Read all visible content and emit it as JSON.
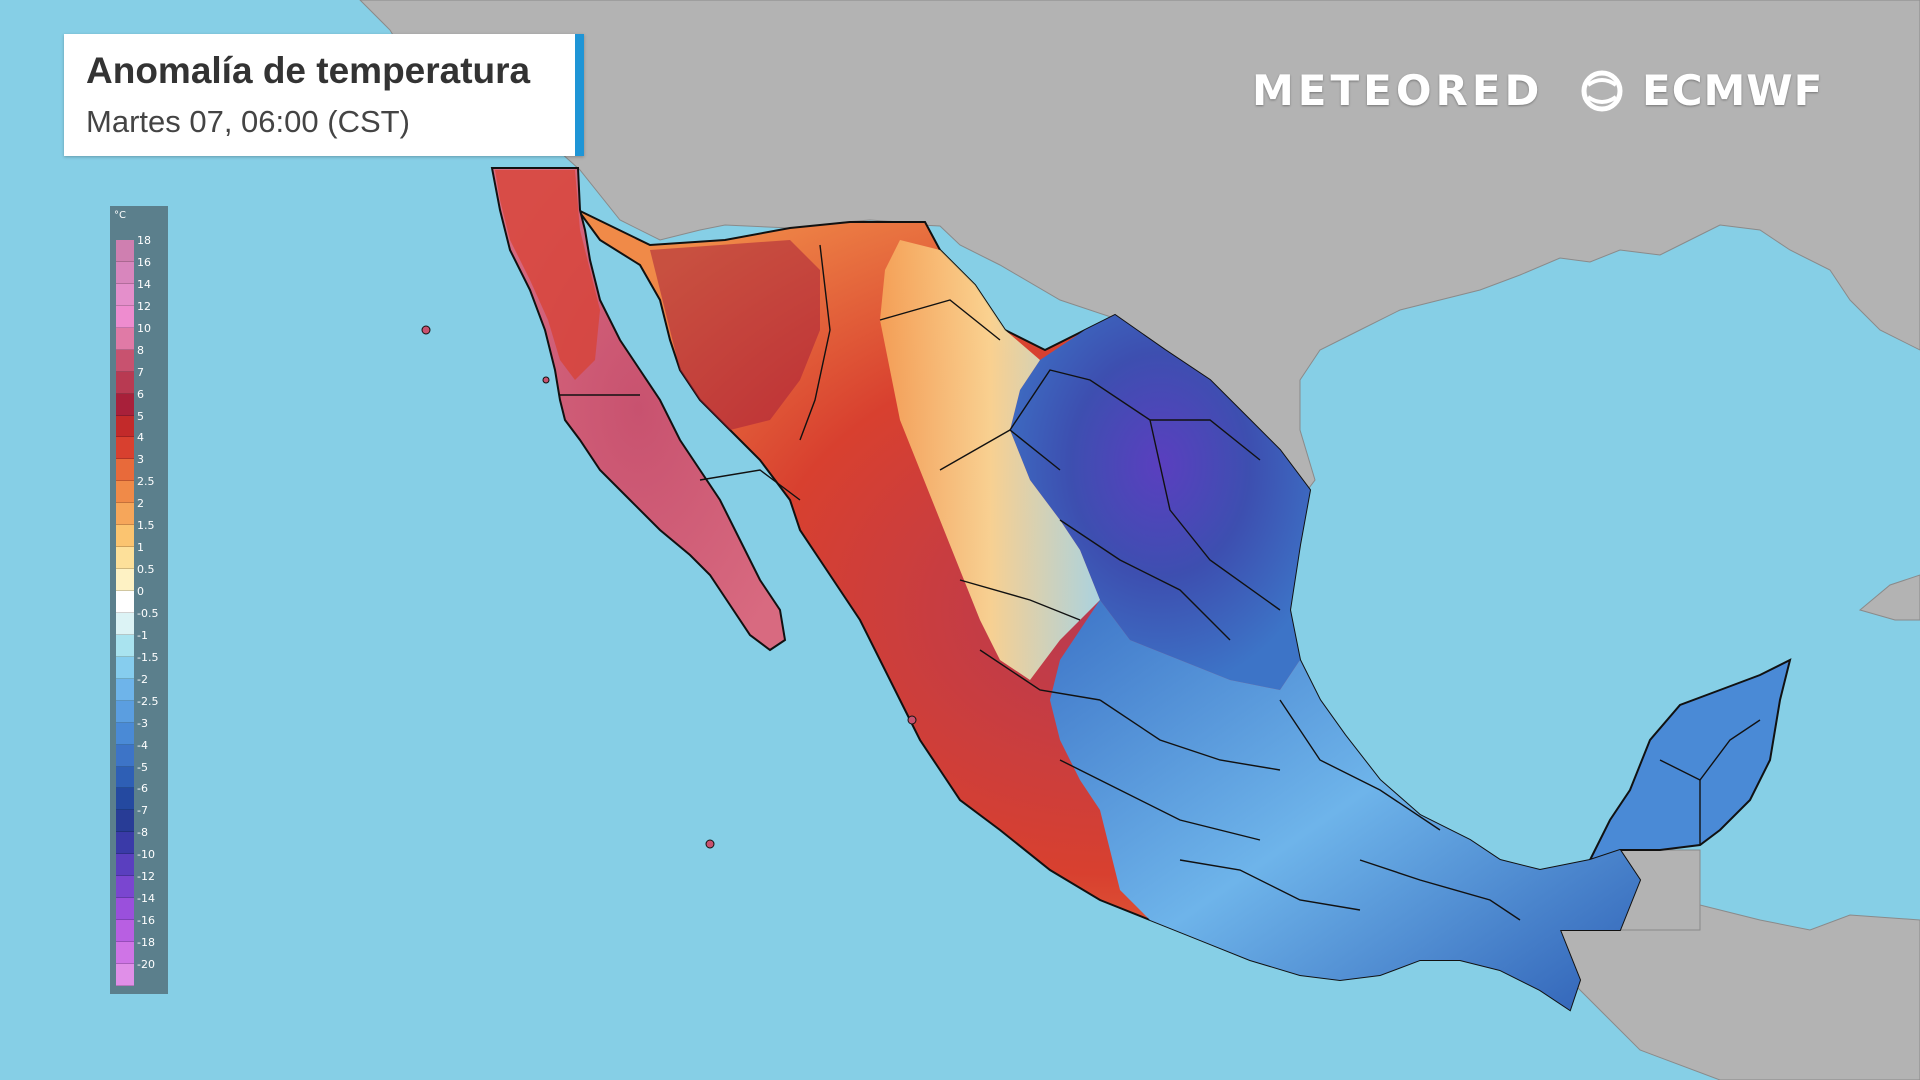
{
  "header": {
    "title": "Anomalía de temperatura",
    "subtitle": "Martes 07, 06:00 (CST)"
  },
  "branding": {
    "meteored": "METEORED",
    "ecmwf": "ECMWF"
  },
  "legend": {
    "unit": "°C",
    "labels": [
      "18",
      "16",
      "14",
      "12",
      "10",
      "8",
      "7",
      "6",
      "5",
      "4",
      "3",
      "2.5",
      "2",
      "1.5",
      "1",
      "0.5",
      "0",
      "-0.5",
      "-1",
      "-1.5",
      "-2",
      "-2.5",
      "-3",
      "-4",
      "-5",
      "-6",
      "-7",
      "-8",
      "-10",
      "-12",
      "-14",
      "-16",
      "-18",
      "-20"
    ],
    "colors": [
      "#cf7fb0",
      "#d886bd",
      "#e48fcb",
      "#ee8ccf",
      "#e07aa6",
      "#c8526f",
      "#b83a52",
      "#a8203a",
      "#c22a2a",
      "#d8402f",
      "#e86a3a",
      "#f08a48",
      "#f6a65a",
      "#fbc470",
      "#fde09a",
      "#fef2c4",
      "#ffffff",
      "#dcf3f5",
      "#a9e3ef",
      "#86cdee",
      "#6eb4ea",
      "#5b9ee0",
      "#4a8ad6",
      "#3d74c7",
      "#2e5fb5",
      "#2449a0",
      "#283c96",
      "#3a3aa8",
      "#5a3fbf",
      "#7a46d0",
      "#9a50dc",
      "#b85fe2",
      "#cf74e6",
      "#e08fe8"
    ]
  },
  "map": {
    "region": "Mexico",
    "colors": {
      "ocean": "#86cfe6",
      "land_outside": "#b3b3b3",
      "warm_anomaly": "#d8402f",
      "cold_anomaly": "#3d74c7",
      "border": "#111111"
    }
  }
}
